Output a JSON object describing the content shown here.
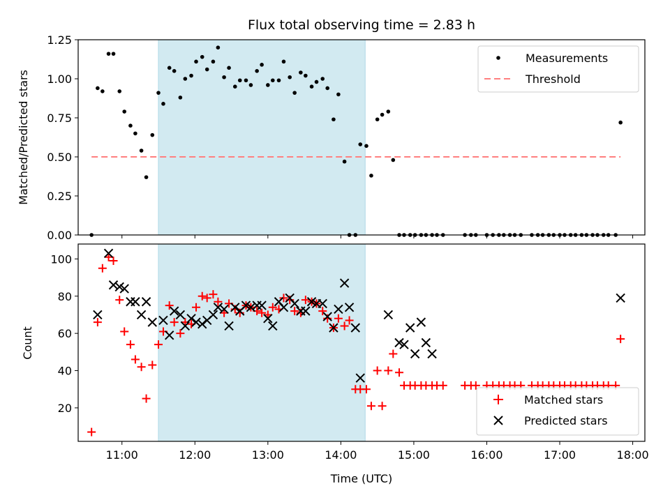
{
  "figure": {
    "title": "Flux total observing time = 2.83 h"
  },
  "colors": {
    "band": "#add8e6",
    "threshold": "#ff7f7f",
    "measure": "#000000",
    "matched": "#ff0000",
    "predicted": "#000000"
  },
  "chart_data": [
    {
      "type": "scatter",
      "title": "Flux total observing time = 2.83 h",
      "xlabel": "",
      "ylabel": "Matched/Predicted stars",
      "xlim": [
        "10:24",
        "18:10"
      ],
      "ylim": [
        0,
        1.25
      ],
      "yticks": [
        0.0,
        0.25,
        0.5,
        0.75,
        1.0,
        1.25
      ],
      "ytick_labels": [
        "0.00",
        "0.25",
        "0.50",
        "0.75",
        "1.00",
        "1.25"
      ],
      "shaded_span": [
        "11:30",
        "14:20"
      ],
      "legend": [
        "Measurements",
        "Threshold"
      ],
      "legend_position": "top-right",
      "threshold": {
        "name": "Threshold",
        "value": 0.5,
        "x": [
          "10:35",
          "17:50"
        ]
      },
      "series": [
        {
          "name": "Measurements",
          "x": [
            "10:35",
            "10:40",
            "10:44",
            "10:49",
            "10:53",
            "10:58",
            "11:02",
            "11:07",
            "11:11",
            "11:16",
            "11:20",
            "11:25",
            "11:30",
            "11:34",
            "11:39",
            "11:43",
            "11:48",
            "11:52",
            "11:57",
            "12:01",
            "12:06",
            "12:10",
            "12:15",
            "12:19",
            "12:24",
            "12:28",
            "12:33",
            "12:37",
            "12:42",
            "12:46",
            "12:51",
            "12:55",
            "13:00",
            "13:04",
            "13:09",
            "13:13",
            "13:18",
            "13:22",
            "13:27",
            "13:31",
            "13:36",
            "13:40",
            "13:45",
            "13:49",
            "13:54",
            "13:58",
            "14:03",
            "14:07",
            "14:12",
            "14:16",
            "14:21",
            "14:25",
            "14:30",
            "14:34",
            "14:39",
            "14:43",
            "14:48",
            "14:52",
            "14:57",
            "15:01",
            "15:06",
            "15:10",
            "15:15",
            "15:19",
            "15:24",
            "15:42",
            "15:47",
            "15:51",
            "16:00",
            "16:05",
            "16:10",
            "16:14",
            "16:19",
            "16:23",
            "16:28",
            "16:37",
            "16:42",
            "16:46",
            "16:51",
            "16:55",
            "17:00",
            "17:04",
            "17:09",
            "17:13",
            "17:18",
            "17:22",
            "17:27",
            "17:31",
            "17:36",
            "17:40",
            "17:46",
            "17:50"
          ],
          "y": [
            0.0,
            0.94,
            0.92,
            1.16,
            1.16,
            0.92,
            0.79,
            0.7,
            0.65,
            0.54,
            0.37,
            0.64,
            0.91,
            0.84,
            1.07,
            1.05,
            0.88,
            1.0,
            1.02,
            1.11,
            1.14,
            1.06,
            1.11,
            1.2,
            1.01,
            1.07,
            0.95,
            0.99,
            0.99,
            0.96,
            1.05,
            1.09,
            0.96,
            0.99,
            0.99,
            1.11,
            1.01,
            0.91,
            1.04,
            1.02,
            0.95,
            0.98,
            1.0,
            0.94,
            0.74,
            0.9,
            0.47,
            0.0,
            0.0,
            0.58,
            0.57,
            0.38,
            0.74,
            0.77,
            0.79,
            0.48,
            0.0,
            0.0,
            0.0,
            0.0,
            0.0,
            0.0,
            0.0,
            0.0,
            0.0,
            0.0,
            0.0,
            0.0,
            0.0,
            0.0,
            0.0,
            0.0,
            0.0,
            0.0,
            0.0,
            0.0,
            0.0,
            0.0,
            0.0,
            0.0,
            0.0,
            0.0,
            0.0,
            0.0,
            0.0,
            0.0,
            0.0,
            0.0,
            0.0,
            0.0,
            0.0,
            0.72
          ]
        }
      ]
    },
    {
      "type": "scatter",
      "xlabel": "Time (UTC)",
      "ylabel": "Count",
      "xlim": [
        "10:24",
        "18:10"
      ],
      "ylim": [
        2,
        108
      ],
      "xticks": [
        "11:00",
        "12:00",
        "13:00",
        "14:00",
        "15:00",
        "16:00",
        "17:00",
        "18:00"
      ],
      "yticks": [
        20,
        40,
        60,
        80,
        100
      ],
      "shaded_span": [
        "11:30",
        "14:20"
      ],
      "legend": [
        "Matched stars",
        "Predicted stars"
      ],
      "legend_position": "bottom-right",
      "series": [
        {
          "name": "Matched stars",
          "x": [
            "10:35",
            "10:40",
            "10:44",
            "10:49",
            "10:53",
            "10:58",
            "11:02",
            "11:07",
            "11:11",
            "11:16",
            "11:20",
            "11:25",
            "11:30",
            "11:34",
            "11:39",
            "11:43",
            "11:48",
            "11:52",
            "11:57",
            "12:01",
            "12:06",
            "12:10",
            "12:15",
            "12:19",
            "12:24",
            "12:28",
            "12:33",
            "12:37",
            "12:42",
            "12:46",
            "12:51",
            "12:55",
            "13:00",
            "13:04",
            "13:09",
            "13:13",
            "13:18",
            "13:22",
            "13:27",
            "13:31",
            "13:36",
            "13:40",
            "13:45",
            "13:49",
            "13:54",
            "13:58",
            "14:03",
            "14:07",
            "14:12",
            "14:16",
            "14:21",
            "14:25",
            "14:30",
            "14:34",
            "14:39",
            "14:43",
            "14:48",
            "14:52",
            "14:57",
            "15:01",
            "15:06",
            "15:10",
            "15:15",
            "15:19",
            "15:24",
            "15:42",
            "15:47",
            "15:51",
            "16:00",
            "16:05",
            "16:10",
            "16:14",
            "16:19",
            "16:23",
            "16:28",
            "16:37",
            "16:42",
            "16:46",
            "16:51",
            "16:55",
            "17:00",
            "17:04",
            "17:09",
            "17:13",
            "17:18",
            "17:22",
            "17:27",
            "17:31",
            "17:36",
            "17:40",
            "17:46",
            "17:50"
          ],
          "y": [
            7,
            66,
            95,
            101,
            99,
            78,
            61,
            54,
            46,
            42,
            25,
            43,
            54,
            61,
            75,
            66,
            60,
            66,
            65,
            74,
            80,
            79,
            81,
            77,
            71,
            76,
            73,
            71,
            75,
            74,
            72,
            71,
            70,
            74,
            73,
            79,
            78,
            72,
            71,
            78,
            77,
            76,
            72,
            68,
            63,
            68,
            64,
            67,
            30,
            30,
            30,
            21,
            40,
            21,
            40,
            49,
            39,
            32,
            32,
            32,
            32,
            32,
            32,
            32,
            32,
            32,
            32,
            32,
            32,
            32,
            32,
            32,
            32,
            32,
            32,
            32,
            32,
            32,
            32,
            32,
            32,
            32,
            32,
            32,
            32,
            32,
            32,
            32,
            32,
            32,
            32,
            57
          ]
        },
        {
          "name": "Predicted stars",
          "x": [
            "10:40",
            "10:49",
            "10:53",
            "10:58",
            "11:02",
            "11:07",
            "11:11",
            "11:16",
            "11:20",
            "11:25",
            "11:34",
            "11:39",
            "11:43",
            "11:48",
            "11:52",
            "11:57",
            "12:01",
            "12:06",
            "12:10",
            "12:15",
            "12:19",
            "12:24",
            "12:28",
            "12:33",
            "12:37",
            "12:42",
            "12:46",
            "12:51",
            "12:55",
            "13:00",
            "13:04",
            "13:09",
            "13:13",
            "13:18",
            "13:22",
            "13:27",
            "13:31",
            "13:36",
            "13:40",
            "13:45",
            "13:49",
            "13:54",
            "13:58",
            "14:03",
            "14:07",
            "14:12",
            "14:16",
            "14:39",
            "14:48",
            "14:52",
            "14:57",
            "15:01",
            "15:06",
            "15:10",
            "15:15",
            "17:50"
          ],
          "y": [
            70,
            103,
            86,
            85,
            84,
            77,
            77,
            70,
            77,
            66,
            67,
            59,
            72,
            70,
            64,
            68,
            66,
            65,
            67,
            70,
            74,
            73,
            64,
            74,
            72,
            75,
            74,
            75,
            75,
            68,
            64,
            77,
            74,
            79,
            76,
            72,
            72,
            77,
            76,
            76,
            69,
            63,
            73,
            87,
            74,
            63,
            36,
            70,
            55,
            54,
            63,
            49,
            66,
            55,
            49,
            79
          ]
        }
      ]
    }
  ]
}
